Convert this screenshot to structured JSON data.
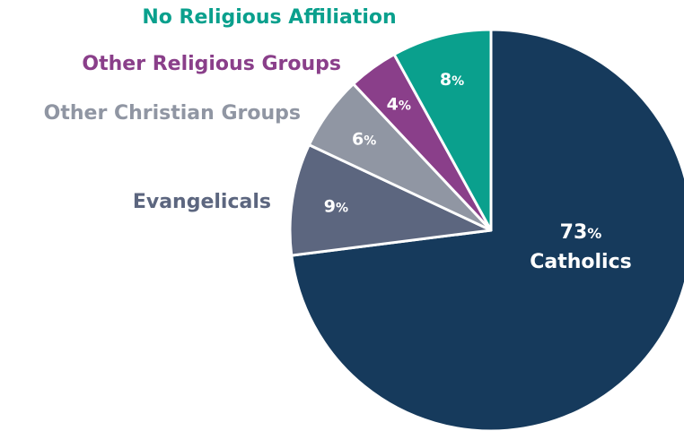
{
  "chart_data": {
    "type": "pie",
    "title": "",
    "start_angle_deg": 0,
    "direction": "clockwise",
    "slices": [
      {
        "label": "Catholics",
        "value": 73,
        "display": "73",
        "color": "#163a5c",
        "label_position": "inside"
      },
      {
        "label": "Evangelicals",
        "value": 9,
        "display": "9",
        "color": "#5c667f",
        "label_position": "outside"
      },
      {
        "label": "Other Christian Groups",
        "value": 6,
        "display": "6",
        "color": "#9096a3",
        "label_position": "outside"
      },
      {
        "label": "Other Religious Groups",
        "value": 4,
        "display": "4",
        "color": "#8a3f8a",
        "label_position": "outside"
      },
      {
        "label": "No Religious Affiliation",
        "value": 8,
        "display": "8",
        "color": "#0aa08d",
        "label_position": "outside"
      }
    ],
    "unit_symbol": "%"
  }
}
